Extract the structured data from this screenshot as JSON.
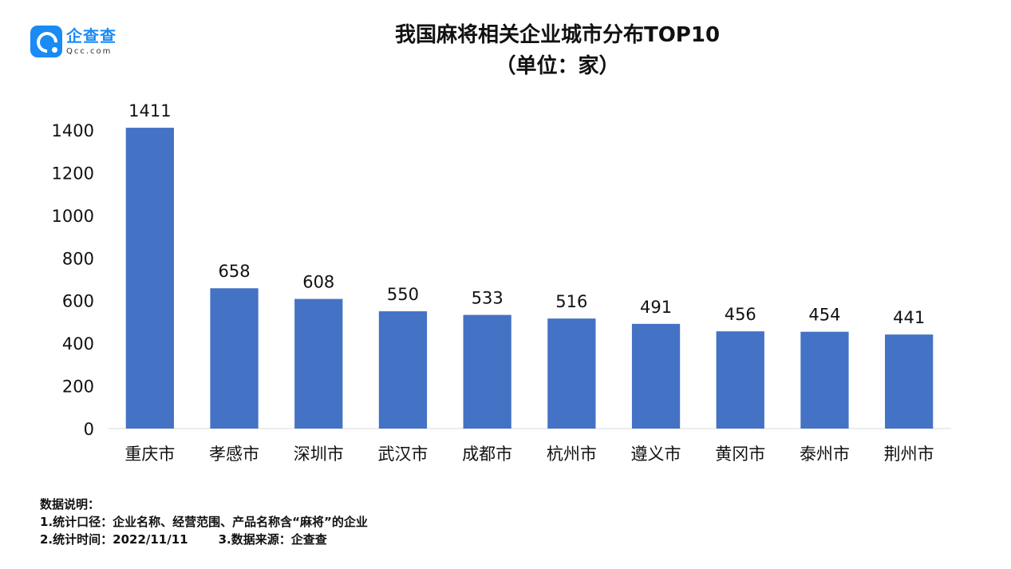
{
  "brand": {
    "name_cn": "企查查",
    "name_en": "Qcc.com"
  },
  "title_line1": "我国麻将相关企业城市分布TOP10",
  "title_line2": "（单位：家）",
  "chart_data": {
    "type": "bar",
    "categories": [
      "重庆市",
      "孝感市",
      "深圳市",
      "武汉市",
      "成都市",
      "杭州市",
      "遵义市",
      "黄冈市",
      "泰州市",
      "荆州市"
    ],
    "values": [
      1411,
      658,
      608,
      550,
      533,
      516,
      491,
      456,
      454,
      441
    ],
    "ylim": [
      0,
      1400
    ],
    "yticks": [
      0,
      200,
      400,
      600,
      800,
      1000,
      1200,
      1400
    ],
    "grid": false,
    "bar_color": "#4472c4",
    "title": "我国麻将相关企业城市分布TOP10",
    "subtitle": "（单位：家）"
  },
  "notes": {
    "heading": "数据说明：",
    "line1": "1.统计口径：企业名称、经营范围、产品名称含“麻将”的企业",
    "line2a": "2.统计时间：2022/11/11",
    "line2b": "3.数据来源：企查查"
  }
}
